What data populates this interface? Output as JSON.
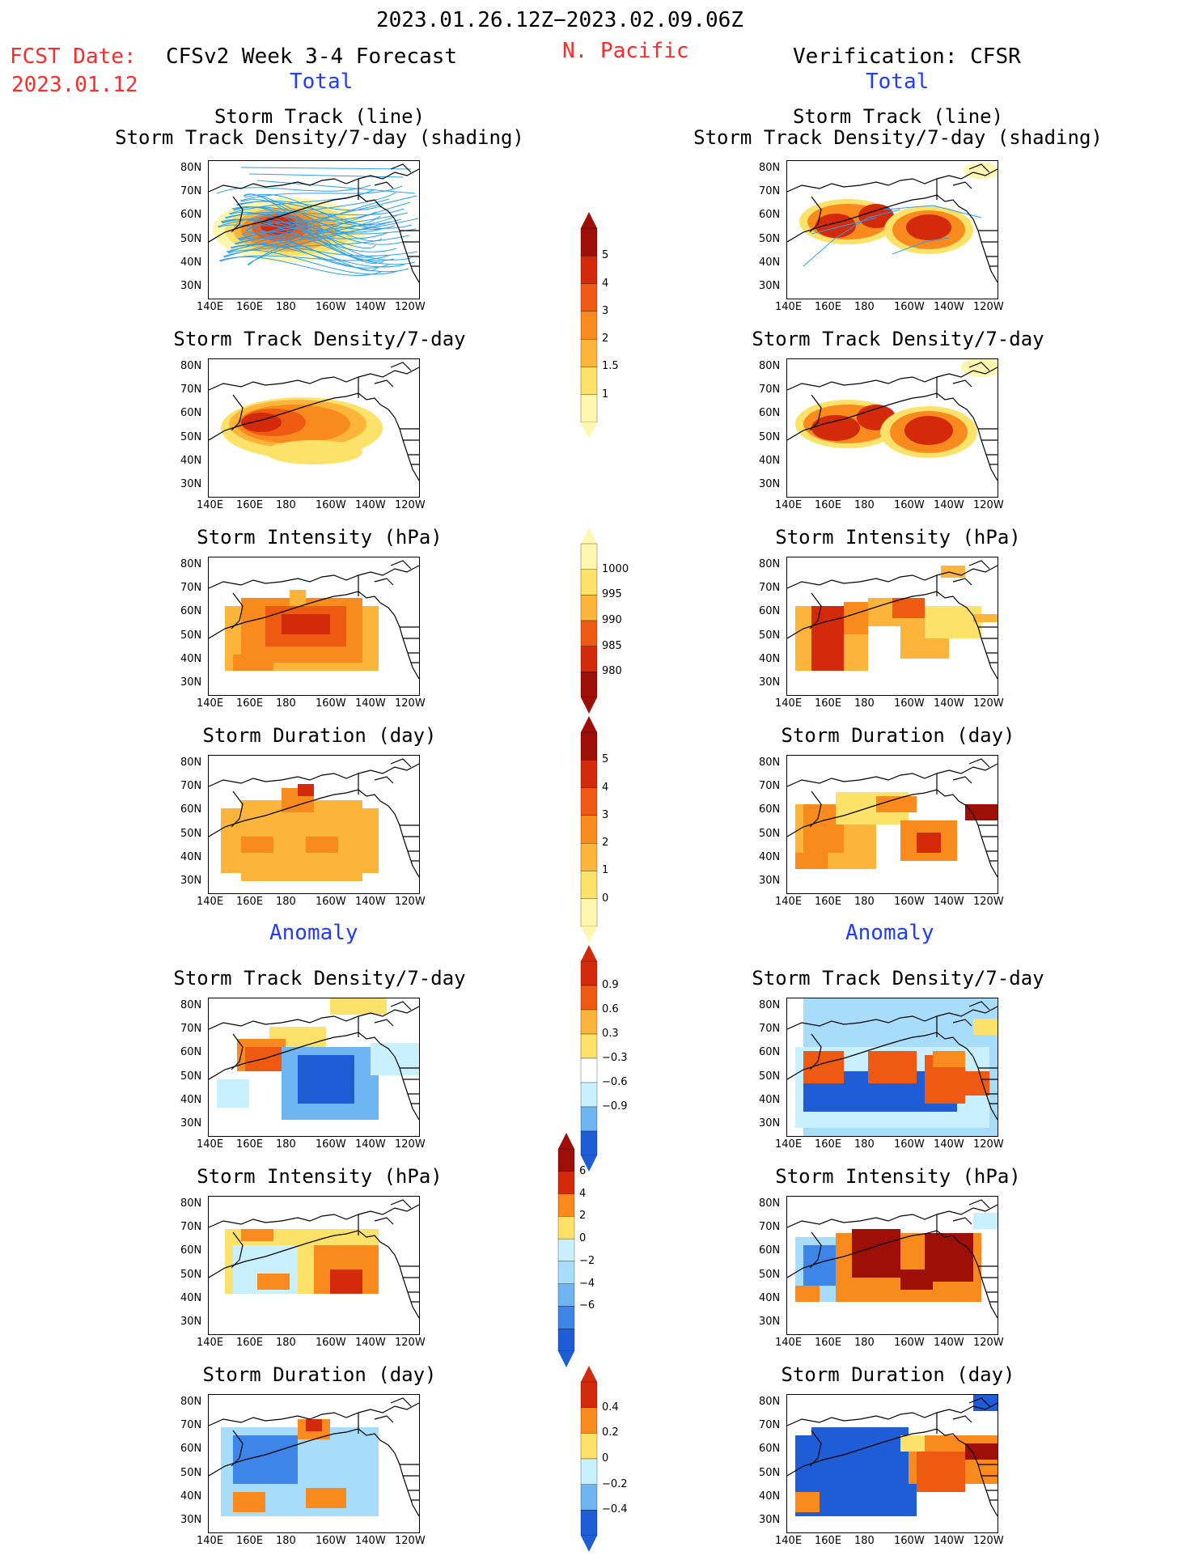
{
  "header": {
    "date_range": "2023.01.26.12Z−2023.02.09.06Z",
    "fcst_label": "FCST Date:",
    "fcst_date": "2023.01.12",
    "model_title": "CFSv2 Week 3-4 Forecast",
    "region": "N. Pacific",
    "verification_title": "Verification: CFSR",
    "left_total": "Total",
    "right_total": "Total",
    "left_anomaly": "Anomaly",
    "right_anomaly": "Anomaly"
  },
  "panels": {
    "track_title_1": "Storm Track (line)",
    "track_title_2": "Storm Track Density/7-day (shading)",
    "density": "Storm Track Density/7-day",
    "intensity": "Storm Intensity (hPa)",
    "duration": "Storm Duration (day)"
  },
  "axes": {
    "lat": [
      "80N",
      "70N",
      "60N",
      "50N",
      "40N",
      "30N"
    ],
    "lon": [
      "140E",
      "160E",
      "180",
      "160W",
      "140W",
      "120W"
    ]
  },
  "colorbars": {
    "density": [
      "5",
      "4",
      "3",
      "2",
      "1.5",
      "1"
    ],
    "intensity": [
      "1000",
      "995",
      "990",
      "985",
      "980"
    ],
    "duration": [
      "5",
      "4",
      "3",
      "2",
      "1",
      "0"
    ],
    "density_anom": [
      "0.9",
      "0.6",
      "0.3",
      "−0.3",
      "−0.6",
      "−0.9"
    ],
    "intensity_anom": [
      "6",
      "4",
      "2",
      "0",
      "−2",
      "−4",
      "−6"
    ],
    "duration_anom": [
      "0.4",
      "0.2",
      "0",
      "−0.2",
      "−0.4"
    ]
  },
  "colors": {
    "warm": [
      "#fff7b0",
      "#fde26a",
      "#fcb53a",
      "#f98a1e",
      "#ef5a12",
      "#d42a0c",
      "#9e0f08"
    ],
    "cool": [
      "#c9f0ff",
      "#a8dcfb",
      "#6fb5f2",
      "#3d86e8",
      "#1e5dd6"
    ],
    "track": "#2aa0f0",
    "title_red": "#ff2a2a",
    "title_blue": "#1f3cff"
  }
}
